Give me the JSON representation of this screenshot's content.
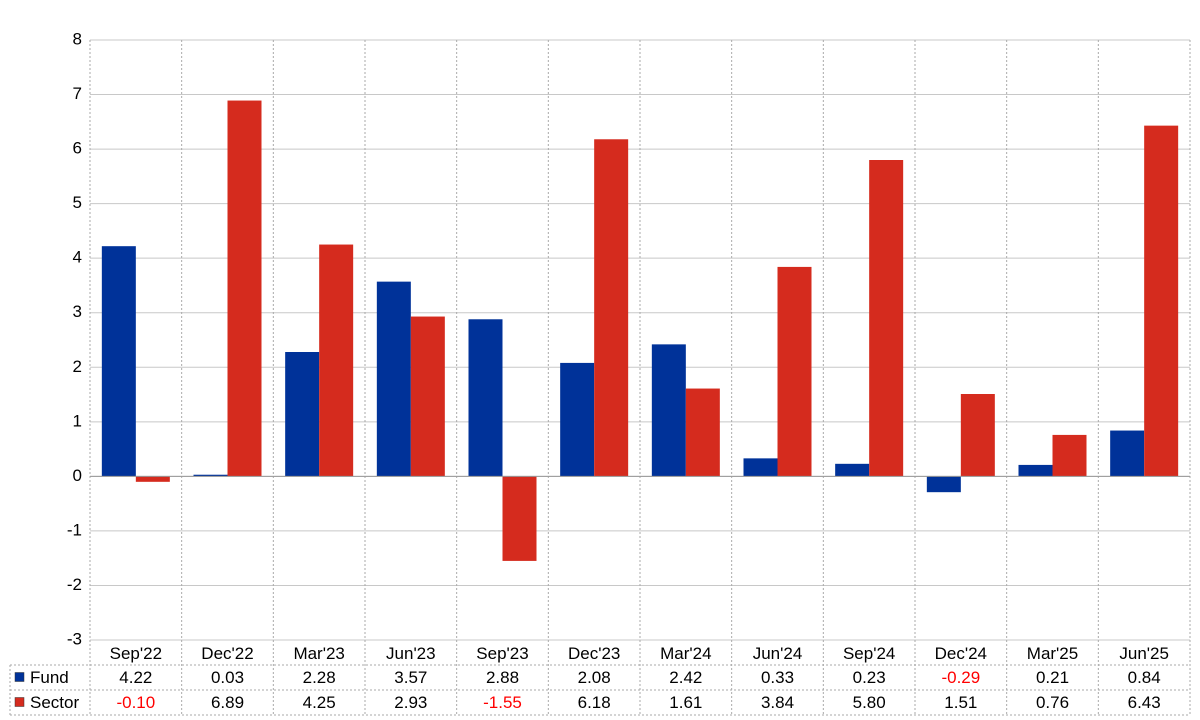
{
  "chart_data": {
    "type": "bar",
    "categories": [
      "Sep'22",
      "Dec'22",
      "Mar'23",
      "Jun'23",
      "Sep'23",
      "Dec'23",
      "Mar'24",
      "Jun'24",
      "Sep'24",
      "Dec'24",
      "Mar'25",
      "Jun'25"
    ],
    "series": [
      {
        "name": "Fund",
        "color": "#003299",
        "values": [
          4.22,
          0.03,
          2.28,
          3.57,
          2.88,
          2.08,
          2.42,
          0.33,
          0.23,
          -0.29,
          0.21,
          0.84
        ],
        "value_labels": [
          "4.22",
          "0.03",
          "2.28",
          "3.57",
          "2.88",
          "2.08",
          "2.42",
          "0.33",
          "0.23",
          "-0.29",
          "0.21",
          "0.84"
        ]
      },
      {
        "name": "Sector",
        "color": "#d52b1e",
        "values": [
          -0.1,
          6.89,
          4.25,
          2.93,
          -1.55,
          6.18,
          1.61,
          3.84,
          5.8,
          1.51,
          0.76,
          6.43
        ],
        "value_labels": [
          "-0.10",
          "6.89",
          "4.25",
          "2.93",
          "-1.55",
          "6.18",
          "1.61",
          "3.84",
          "5.80",
          "1.51",
          "0.76",
          "6.43"
        ]
      }
    ],
    "ylim": [
      -3,
      8
    ],
    "yticks": [
      -3,
      -2,
      -1,
      0,
      1,
      2,
      3,
      4,
      5,
      6,
      7,
      8
    ],
    "grid": true,
    "negative_color": "#ff0000"
  }
}
